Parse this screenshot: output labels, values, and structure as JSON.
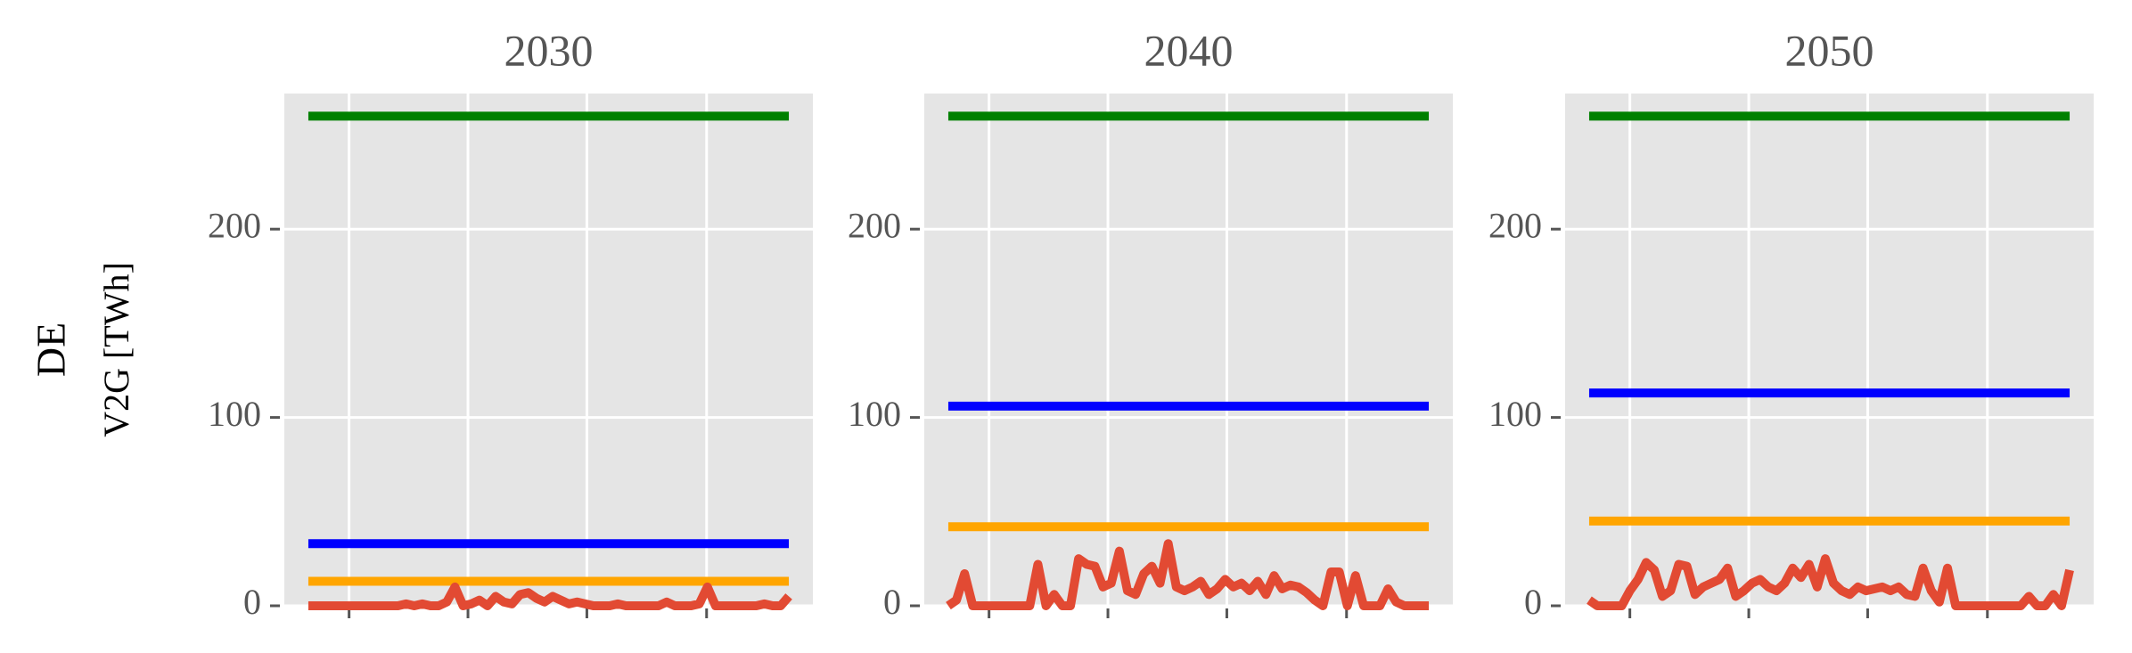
{
  "chart_data": [
    {
      "type": "line",
      "title": "2030",
      "row_label": "DE",
      "ylabel": "V2G [TWh]",
      "xlim": [
        -2.95,
        61.95
      ],
      "xticks": [
        5,
        19.6,
        34.2,
        48.9
      ],
      "ylim": [
        0,
        272
      ],
      "yticks": [
        0,
        100,
        200
      ],
      "grid": true,
      "series": [
        {
          "color": "#008000",
          "x": [
            0,
            59
          ],
          "values": [
            260,
            260
          ]
        },
        {
          "color": "#0000ff",
          "x": [
            0,
            59
          ],
          "values": [
            33,
            33
          ]
        },
        {
          "color": "#ffa500",
          "x": [
            0,
            59
          ],
          "values": [
            13,
            13
          ]
        },
        {
          "color": "#e24a33",
          "x": [
            0,
            1,
            2,
            3,
            4,
            5,
            6,
            7,
            8,
            9,
            10,
            11,
            12,
            13,
            14,
            15,
            16,
            17,
            18,
            19,
            20,
            21,
            22,
            23,
            24,
            25,
            26,
            27,
            28,
            29,
            30,
            31,
            32,
            33,
            34,
            35,
            36,
            37,
            38,
            39,
            40,
            41,
            42,
            43,
            44,
            45,
            46,
            47,
            48,
            49,
            50,
            51,
            52,
            53,
            54,
            55,
            56,
            57,
            58,
            59
          ],
          "values": [
            0,
            0,
            0,
            0,
            0,
            0,
            0,
            0,
            0,
            0,
            0,
            0,
            1,
            0,
            1,
            0,
            0,
            2,
            10,
            0,
            1,
            3,
            0,
            5,
            2,
            1,
            6,
            7,
            4,
            2,
            5,
            3,
            1,
            2,
            1,
            0,
            0,
            0,
            1,
            0,
            0,
            0,
            0,
            0,
            2,
            0,
            0,
            0,
            1,
            10,
            0,
            0,
            0,
            0,
            0,
            0,
            1,
            0,
            0,
            5
          ]
        }
      ]
    },
    {
      "type": "line",
      "title": "2040",
      "xlim": [
        -2.95,
        61.95
      ],
      "xticks": [
        5,
        19.6,
        34.2,
        48.9
      ],
      "ylim": [
        0,
        272
      ],
      "yticks": [
        0,
        100,
        200
      ],
      "grid": true,
      "series": [
        {
          "color": "#008000",
          "x": [
            0,
            59
          ],
          "values": [
            260,
            260
          ]
        },
        {
          "color": "#0000ff",
          "x": [
            0,
            59
          ],
          "values": [
            106,
            106
          ]
        },
        {
          "color": "#ffa500",
          "x": [
            0,
            59
          ],
          "values": [
            42,
            42
          ]
        },
        {
          "color": "#e24a33",
          "x": [
            0,
            1,
            2,
            3,
            4,
            5,
            6,
            7,
            8,
            9,
            10,
            11,
            12,
            13,
            14,
            15,
            16,
            17,
            18,
            19,
            20,
            21,
            22,
            23,
            24,
            25,
            26,
            27,
            28,
            29,
            30,
            31,
            32,
            33,
            34,
            35,
            36,
            37,
            38,
            39,
            40,
            41,
            42,
            43,
            44,
            45,
            46,
            47,
            48,
            49,
            50,
            51,
            52,
            53,
            54,
            55,
            56,
            57,
            58,
            59
          ],
          "values": [
            0,
            3,
            17,
            0,
            0,
            0,
            0,
            0,
            0,
            0,
            0,
            22,
            0,
            6,
            0,
            0,
            25,
            22,
            21,
            10,
            12,
            29,
            8,
            6,
            17,
            21,
            12,
            33,
            10,
            8,
            10,
            13,
            6,
            9,
            14,
            10,
            12,
            8,
            13,
            6,
            16,
            9,
            11,
            10,
            7,
            3,
            0,
            18,
            18,
            0,
            16,
            0,
            0,
            0,
            9,
            2,
            0,
            0,
            0,
            0
          ]
        }
      ]
    },
    {
      "type": "line",
      "title": "2050",
      "xlim": [
        -2.95,
        61.95
      ],
      "xticks": [
        5,
        19.6,
        34.2,
        48.9
      ],
      "ylim": [
        0,
        272
      ],
      "yticks": [
        0,
        100,
        200
      ],
      "grid": true,
      "series": [
        {
          "color": "#008000",
          "x": [
            0,
            59
          ],
          "values": [
            260,
            260
          ]
        },
        {
          "color": "#0000ff",
          "x": [
            0,
            59
          ],
          "values": [
            113,
            113
          ]
        },
        {
          "color": "#ffa500",
          "x": [
            0,
            59
          ],
          "values": [
            45,
            45
          ]
        },
        {
          "color": "#e24a33",
          "x": [
            0,
            1,
            2,
            3,
            4,
            5,
            6,
            7,
            8,
            9,
            10,
            11,
            12,
            13,
            14,
            15,
            16,
            17,
            18,
            19,
            20,
            21,
            22,
            23,
            24,
            25,
            26,
            27,
            28,
            29,
            30,
            31,
            32,
            33,
            34,
            35,
            36,
            37,
            38,
            39,
            40,
            41,
            42,
            43,
            44,
            45,
            46,
            47,
            48,
            49,
            50,
            51,
            52,
            53,
            54,
            55,
            56,
            57,
            58,
            59
          ],
          "values": [
            3,
            0,
            0,
            0,
            0,
            8,
            14,
            23,
            19,
            5,
            8,
            22,
            21,
            6,
            10,
            12,
            14,
            20,
            5,
            8,
            12,
            14,
            10,
            8,
            12,
            20,
            15,
            22,
            10,
            25,
            12,
            8,
            6,
            10,
            8,
            9,
            10,
            8,
            10,
            6,
            5,
            20,
            8,
            2,
            20,
            0,
            0,
            0,
            0,
            0,
            0,
            0,
            0,
            0,
            5,
            0,
            0,
            6,
            0,
            19
          ]
        }
      ]
    }
  ]
}
